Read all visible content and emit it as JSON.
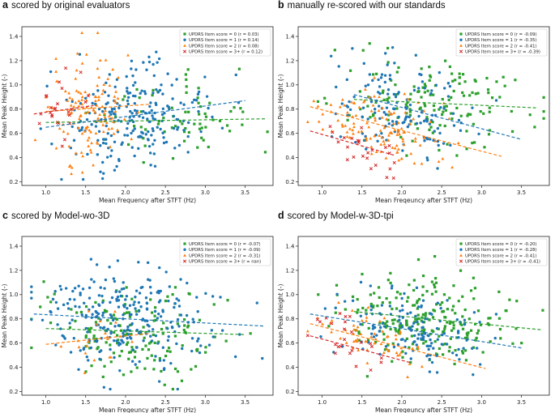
{
  "colors": {
    "s0": "#2ca02c",
    "s1": "#1f77b4",
    "s2": "#ff7f0e",
    "s3": "#d62728"
  },
  "chart_data": [
    {
      "type": "scatter",
      "letter": "a",
      "title": "scored by original evaluators",
      "xlabel": "Mean Frequency after STFT (Hz)",
      "ylabel": "Mean Peak Height (-)",
      "xlim": [
        0.7,
        3.85
      ],
      "ylim": [
        0.17,
        1.48
      ],
      "xticks": [
        1.0,
        1.5,
        2.0,
        2.5,
        3.0,
        3.5
      ],
      "yticks": [
        0.2,
        0.4,
        0.6,
        0.8,
        1.0,
        1.2,
        1.4
      ],
      "legend_position": "top-right",
      "series": [
        {
          "name": "UPDRS Item score = 0",
          "r_label": "(r = 0.03)",
          "marker": "square",
          "n": 70,
          "xmean": 2.6,
          "xsd": 0.5,
          "yc": 0.7,
          "yspread": 0.23,
          "fit": [
            [
              1.0,
              0.69
            ],
            [
              3.75,
              0.72
            ]
          ]
        },
        {
          "name": "UPDRS Item score = 1",
          "r_label": "(r = 0.14)",
          "marker": "circle",
          "n": 230,
          "xmean": 2.1,
          "xsd": 0.42,
          "yc": 0.76,
          "yspread": 0.27,
          "fit": [
            [
              1.0,
              0.65
            ],
            [
              3.5,
              0.87
            ]
          ]
        },
        {
          "name": "UPDRS Item score = 2",
          "r_label": "(r = 0.08)",
          "marker": "triangle",
          "n": 130,
          "xmean": 1.55,
          "xsd": 0.25,
          "yc": 0.82,
          "yspread": 0.3,
          "fit": [
            [
              1.0,
              0.78
            ],
            [
              2.3,
              0.84
            ]
          ]
        },
        {
          "name": "UPDRS Item score = 3+",
          "r_label": "(r = 0.12)",
          "marker": "x",
          "n": 25,
          "xmean": 1.12,
          "xsd": 0.15,
          "yc": 0.82,
          "yspread": 0.18,
          "fit": [
            [
              0.85,
              0.76
            ],
            [
              1.6,
              0.83
            ]
          ]
        }
      ]
    },
    {
      "type": "scatter",
      "letter": "b",
      "title": "manually re-scored with our standards",
      "xlabel": "Mean Freqeuncy after STFT (Hz)",
      "ylabel": "Mean Peak Height (-)",
      "xlim": [
        0.7,
        3.85
      ],
      "ylim": [
        0.17,
        1.48
      ],
      "xticks": [
        1.0,
        1.5,
        2.0,
        2.5,
        3.0,
        3.5
      ],
      "yticks": [
        0.2,
        0.4,
        0.6,
        0.8,
        1.0,
        1.2,
        1.4
      ],
      "legend_position": "top-right",
      "series": [
        {
          "name": "UPDRS Item score = 0",
          "r_label": "(r = -0.09)",
          "marker": "square",
          "n": 150,
          "xmean": 2.4,
          "xsd": 0.55,
          "yc": 0.82,
          "yspread": 0.25,
          "fit": [
            [
              1.4,
              0.88
            ],
            [
              3.7,
              0.81
            ]
          ]
        },
        {
          "name": "UPDRS Item score = 1",
          "r_label": "(r = -0.35)",
          "marker": "circle",
          "n": 150,
          "xmean": 2.0,
          "xsd": 0.4,
          "yc": 0.8,
          "yspread": 0.25,
          "fit": [
            [
              1.4,
              0.92
            ],
            [
              3.5,
              0.55
            ]
          ]
        },
        {
          "name": "UPDRS Item score = 2",
          "r_label": "(r = -0.41)",
          "marker": "triangle",
          "n": 120,
          "xmean": 1.75,
          "xsd": 0.4,
          "yc": 0.62,
          "yspread": 0.2,
          "fit": [
            [
              0.85,
              0.82
            ],
            [
              3.25,
              0.41
            ]
          ]
        },
        {
          "name": "UPDRS Item score = 3+",
          "r_label": "(r = -0.39)",
          "marker": "x",
          "n": 25,
          "xmean": 1.45,
          "xsd": 0.25,
          "yc": 0.5,
          "yspread": 0.14,
          "fit": [
            [
              0.85,
              0.62
            ],
            [
              1.9,
              0.42
            ]
          ]
        }
      ]
    },
    {
      "type": "scatter",
      "letter": "c",
      "title": "scored by Model-wo-3D",
      "xlabel": "Mean Freqeuncy after STFT (Hz)",
      "ylabel": "Mean Peak Height (-)",
      "xlim": [
        0.7,
        3.85
      ],
      "ylim": [
        0.17,
        1.48
      ],
      "xticks": [
        1.0,
        1.5,
        2.0,
        2.5,
        3.0,
        3.5
      ],
      "yticks": [
        0.2,
        0.4,
        0.6,
        0.8,
        1.0,
        1.2,
        1.4
      ],
      "legend_position": "top-right",
      "series": [
        {
          "name": "UPDRS Item score = 0",
          "r_label": "(r = -0.07)",
          "marker": "square",
          "n": 160,
          "xmean": 2.1,
          "xsd": 0.55,
          "yc": 0.7,
          "yspread": 0.24,
          "fit": [
            [
              1.0,
              0.72
            ],
            [
              3.5,
              0.67
            ]
          ]
        },
        {
          "name": "UPDRS Item score = 1",
          "r_label": "(r = -0.09)",
          "marker": "circle",
          "n": 270,
          "xmean": 2.0,
          "xsd": 0.5,
          "yc": 0.8,
          "yspread": 0.27,
          "fit": [
            [
              0.85,
              0.84
            ],
            [
              3.75,
              0.74
            ]
          ]
        },
        {
          "name": "UPDRS Item score = 2",
          "r_label": "(r = -0.31)",
          "marker": "triangle",
          "n": 20,
          "xmean": 1.7,
          "xsd": 0.4,
          "yc": 0.65,
          "yspread": 0.12,
          "fit": [
            [
              1.0,
              0.59
            ],
            [
              2.3,
              0.68
            ]
          ]
        },
        {
          "name": "UPDRS Item score = 3+",
          "r_label": "(r = nan)",
          "marker": "x",
          "n": 0,
          "xmean": 1.0,
          "xsd": 0.1,
          "yc": 0.6,
          "yspread": 0.1,
          "fit": []
        }
      ]
    },
    {
      "type": "scatter",
      "letter": "d",
      "title": "scored by Model-w-3D-tpi",
      "xlabel": "Mean Freqeuncy after STFT (Hz)",
      "ylabel": "Mean Peak Height (-)",
      "xlim": [
        0.7,
        3.85
      ],
      "ylim": [
        0.17,
        1.48
      ],
      "xticks": [
        1.0,
        1.5,
        2.0,
        2.5,
        3.0,
        3.5
      ],
      "yticks": [
        0.2,
        0.4,
        0.6,
        0.8,
        1.0,
        1.2,
        1.4
      ],
      "legend_position": "top-right",
      "series": [
        {
          "name": "UPDRS Item score = 0",
          "r_label": "(r = -0.20)",
          "marker": "square",
          "n": 230,
          "xmean": 2.3,
          "xsd": 0.5,
          "yc": 0.83,
          "yspread": 0.25,
          "fit": [
            [
              1.4,
              0.86
            ],
            [
              3.75,
              0.71
            ]
          ]
        },
        {
          "name": "UPDRS Item score = 1",
          "r_label": "(r = -0.28)",
          "marker": "circle",
          "n": 140,
          "xmean": 2.1,
          "xsd": 0.45,
          "yc": 0.73,
          "yspread": 0.2,
          "fit": [
            [
              0.85,
              0.84
            ],
            [
              3.5,
              0.56
            ]
          ]
        },
        {
          "name": "UPDRS Item score = 2",
          "r_label": "(r = -0.41)",
          "marker": "triangle",
          "n": 60,
          "xmean": 1.6,
          "xsd": 0.35,
          "yc": 0.58,
          "yspread": 0.14,
          "fit": [
            [
              0.85,
              0.76
            ],
            [
              3.05,
              0.39
            ]
          ]
        },
        {
          "name": "UPDRS Item score = 3+",
          "r_label": "(r = -0.41)",
          "marker": "x",
          "n": 25,
          "xmean": 1.3,
          "xsd": 0.25,
          "yc": 0.55,
          "yspread": 0.14,
          "fit": [
            [
              0.85,
              0.66
            ],
            [
              2.1,
              0.44
            ]
          ]
        }
      ]
    }
  ]
}
